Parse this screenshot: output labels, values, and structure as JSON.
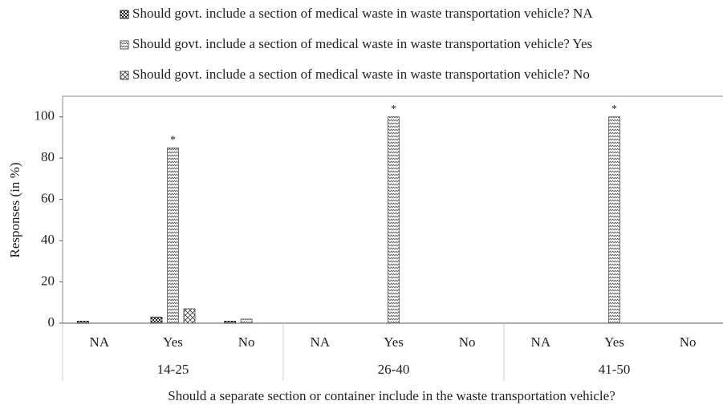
{
  "chart_data": {
    "type": "bar",
    "x_label": "Should a separate section or container include in the waste transportation vehicle?",
    "y_label": "Responses (in %)",
    "categories": [
      "NA",
      "Yes",
      "No",
      "NA",
      "Yes",
      "No",
      "NA",
      "Yes",
      "No"
    ],
    "groups": [
      "14-25",
      "26-40",
      "41-50"
    ],
    "series": [
      {
        "name": "Should govt. include a section of medical waste in waste transportation vehicle?  NA",
        "color": "#222222",
        "values": [
          1,
          3,
          1,
          0,
          0,
          0,
          0,
          0,
          0
        ]
      },
      {
        "name": "Should govt. include a section of medical waste in waste transportation vehicle?  Yes",
        "color": "#555555",
        "values": [
          0,
          85,
          2,
          0,
          100,
          0,
          0,
          100,
          0
        ]
      },
      {
        "name": "Should govt. include a section of medical waste in waste transportation vehicle?  No",
        "color": "#444444",
        "values": [
          0,
          7,
          0,
          0,
          0,
          0,
          0,
          0,
          0
        ]
      }
    ],
    "annotations": [
      {
        "text": "*",
        "category_index": 1
      },
      {
        "text": "*",
        "category_index": 4
      },
      {
        "text": "*",
        "category_index": 7
      }
    ],
    "ylim": [
      0,
      110
    ],
    "yticks": [
      0,
      20,
      40,
      60,
      80,
      100
    ],
    "grid": false,
    "legend": "top"
  }
}
